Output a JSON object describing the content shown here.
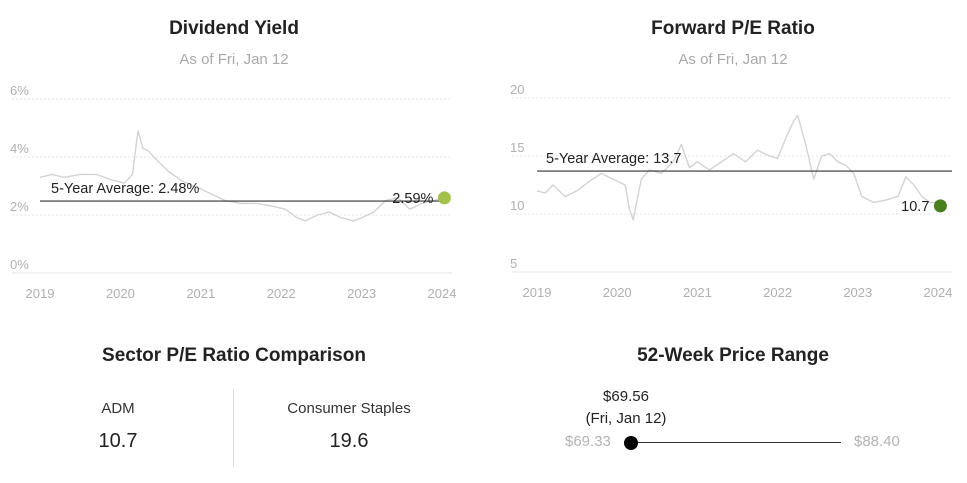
{
  "dividend_yield": {
    "title": "Dividend Yield",
    "subtitle": "As of Fri, Jan 12",
    "average_label": "5-Year Average: 2.48%",
    "current_label": "2.59%",
    "current_color": "#a3c24d",
    "line_color": "#d3d3d3"
  },
  "forward_pe": {
    "title": "Forward P/E Ratio",
    "subtitle": "As of Fri, Jan 12",
    "average_label": "5-Year Average: 13.7",
    "current_label": "10.7",
    "current_color": "#4a7f1f",
    "line_color": "#d3d3d3"
  },
  "sector_comparison": {
    "title": "Sector P/E Ratio Comparison",
    "left_label": "ADM",
    "left_value": "10.7",
    "right_label": "Consumer Staples",
    "right_value": "19.6"
  },
  "price_range": {
    "title": "52-Week Price Range",
    "current_price": "$69.56",
    "current_date": "(Fri, Jan 12)",
    "low": "$69.33",
    "high": "$88.40",
    "low_value": 69.33,
    "high_value": 88.4,
    "current_value": 69.56
  },
  "chart_data": [
    {
      "type": "line",
      "title": "Dividend Yield",
      "ylabel": "",
      "xlabel": "",
      "ylim": [
        0,
        6
      ],
      "y_ticks": [
        "0%",
        "2%",
        "4%",
        "6%"
      ],
      "y_tick_values": [
        0,
        2,
        4,
        6
      ],
      "x_ticks": [
        "2019",
        "2020",
        "2021",
        "2022",
        "2023",
        "2024"
      ],
      "x_tick_values": [
        2019,
        2020,
        2021,
        2022,
        2023,
        2024
      ],
      "average": 2.48,
      "current": {
        "x": 2024.03,
        "y": 2.59
      },
      "series": [
        {
          "x": [
            2019.0,
            2019.15,
            2019.3,
            2019.5,
            2019.7,
            2019.9,
            2020.05,
            2020.15,
            2020.2,
            2020.22,
            2020.28,
            2020.35,
            2020.45,
            2020.6,
            2020.75,
            2020.9,
            2021.0,
            2021.15,
            2021.3,
            2021.5,
            2021.7,
            2021.9,
            2022.05,
            2022.2,
            2022.3,
            2022.45,
            2022.6,
            2022.75,
            2022.9,
            2023.0,
            2023.15,
            2023.3,
            2023.45,
            2023.6,
            2023.75,
            2023.9,
            2024.0
          ],
          "y": [
            3.3,
            3.4,
            3.3,
            3.4,
            3.4,
            3.2,
            3.1,
            3.4,
            4.5,
            4.9,
            4.3,
            4.2,
            3.9,
            3.5,
            3.2,
            3.0,
            2.9,
            2.7,
            2.5,
            2.4,
            2.4,
            2.3,
            2.2,
            1.9,
            1.8,
            2.0,
            2.1,
            1.9,
            1.8,
            1.9,
            2.1,
            2.5,
            2.6,
            2.2,
            2.4,
            2.5,
            2.6
          ]
        }
      ]
    },
    {
      "type": "line",
      "title": "Forward P/E Ratio",
      "ylabel": "",
      "xlabel": "",
      "ylim": [
        5,
        20
      ],
      "y_ticks": [
        "5",
        "10",
        "15",
        "20"
      ],
      "y_tick_values": [
        5,
        10,
        15,
        20
      ],
      "x_ticks": [
        "2019",
        "2020",
        "2021",
        "2022",
        "2023",
        "2024"
      ],
      "x_tick_values": [
        2019,
        2020,
        2021,
        2022,
        2023,
        2024
      ],
      "average": 13.7,
      "current": {
        "x": 2024.03,
        "y": 10.7
      },
      "series": [
        {
          "x": [
            2019.0,
            2019.1,
            2019.2,
            2019.35,
            2019.5,
            2019.65,
            2019.8,
            2019.95,
            2020.1,
            2020.15,
            2020.2,
            2020.3,
            2020.4,
            2020.55,
            2020.7,
            2020.8,
            2020.9,
            2021.0,
            2021.15,
            2021.3,
            2021.45,
            2021.6,
            2021.75,
            2021.9,
            2022.0,
            2022.1,
            2022.2,
            2022.25,
            2022.35,
            2022.45,
            2022.55,
            2022.65,
            2022.75,
            2022.85,
            2022.95,
            2023.05,
            2023.2,
            2023.35,
            2023.5,
            2023.6,
            2023.7,
            2023.8,
            2023.9,
            2024.0
          ],
          "y": [
            12.0,
            11.8,
            12.5,
            11.5,
            12.0,
            12.8,
            13.5,
            13.0,
            12.5,
            10.5,
            9.5,
            13.0,
            13.8,
            13.5,
            14.5,
            16.0,
            14.0,
            14.5,
            13.8,
            14.5,
            15.2,
            14.5,
            15.5,
            15.0,
            14.8,
            16.5,
            18.0,
            18.5,
            16.0,
            13.0,
            15.0,
            15.2,
            14.5,
            14.2,
            13.5,
            11.5,
            11.0,
            11.2,
            11.5,
            13.2,
            12.5,
            11.5,
            11.0,
            11.0
          ]
        }
      ]
    }
  ]
}
